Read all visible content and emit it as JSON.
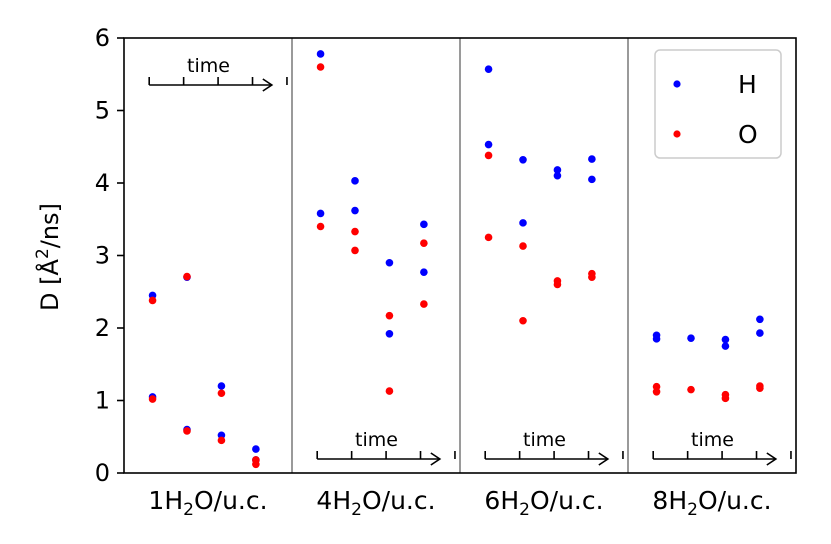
{
  "chart_data": {
    "type": "scatter",
    "ylabel_prefix": "D [Å",
    "ylabel_sup": "2",
    "ylabel_suffix": "/ns]",
    "ylim": [
      0,
      6
    ],
    "yticks": [
      "0",
      "1",
      "2",
      "3",
      "4",
      "5",
      "6"
    ],
    "grid": false,
    "legend_position": "top-right",
    "time_label": "time",
    "panels": [
      {
        "label_pre": "1H",
        "label_sub": "2",
        "label_post": "O/u.c.",
        "time_arrow_position": "top",
        "H": [
          {
            "t": 1,
            "v": 2.45
          },
          {
            "t": 1,
            "v": 1.05
          },
          {
            "t": 2,
            "v": 2.7
          },
          {
            "t": 2,
            "v": 0.6
          },
          {
            "t": 3,
            "v": 1.2
          },
          {
            "t": 3,
            "v": 0.52
          },
          {
            "t": 4,
            "v": 0.33
          },
          {
            "t": 4,
            "v": 0.18
          }
        ],
        "O": [
          {
            "t": 1,
            "v": 2.38
          },
          {
            "t": 1,
            "v": 1.02
          },
          {
            "t": 2,
            "v": 2.71
          },
          {
            "t": 2,
            "v": 0.58
          },
          {
            "t": 3,
            "v": 1.1
          },
          {
            "t": 3,
            "v": 0.45
          },
          {
            "t": 4,
            "v": 0.18
          },
          {
            "t": 4,
            "v": 0.12
          }
        ]
      },
      {
        "label_pre": "4H",
        "label_sub": "2",
        "label_post": "O/u.c.",
        "time_arrow_position": "bottom",
        "H": [
          {
            "t": 1,
            "v": 5.78
          },
          {
            "t": 1,
            "v": 3.58
          },
          {
            "t": 2,
            "v": 4.03
          },
          {
            "t": 2,
            "v": 3.62
          },
          {
            "t": 3,
            "v": 2.9
          },
          {
            "t": 3,
            "v": 1.92
          },
          {
            "t": 4,
            "v": 3.43
          },
          {
            "t": 4,
            "v": 2.77
          }
        ],
        "O": [
          {
            "t": 1,
            "v": 5.6
          },
          {
            "t": 1,
            "v": 3.4
          },
          {
            "t": 2,
            "v": 3.33
          },
          {
            "t": 2,
            "v": 3.07
          },
          {
            "t": 3,
            "v": 2.17
          },
          {
            "t": 3,
            "v": 1.13
          },
          {
            "t": 4,
            "v": 3.17
          },
          {
            "t": 4,
            "v": 2.33
          }
        ]
      },
      {
        "label_pre": "6H",
        "label_sub": "2",
        "label_post": "O/u.c.",
        "time_arrow_position": "bottom",
        "H": [
          {
            "t": 1,
            "v": 5.57
          },
          {
            "t": 1,
            "v": 4.53
          },
          {
            "t": 2,
            "v": 4.32
          },
          {
            "t": 2,
            "v": 3.45
          },
          {
            "t": 3,
            "v": 4.18
          },
          {
            "t": 3,
            "v": 4.1
          },
          {
            "t": 4,
            "v": 4.33
          },
          {
            "t": 4,
            "v": 4.05
          }
        ],
        "O": [
          {
            "t": 1,
            "v": 4.38
          },
          {
            "t": 1,
            "v": 3.25
          },
          {
            "t": 2,
            "v": 3.13
          },
          {
            "t": 2,
            "v": 2.1
          },
          {
            "t": 3,
            "v": 2.65
          },
          {
            "t": 3,
            "v": 2.6
          },
          {
            "t": 4,
            "v": 2.75
          },
          {
            "t": 4,
            "v": 2.7
          }
        ]
      },
      {
        "label_pre": "8H",
        "label_sub": "2",
        "label_post": "O/u.c.",
        "time_arrow_position": "bottom",
        "H": [
          {
            "t": 1,
            "v": 1.9
          },
          {
            "t": 1,
            "v": 1.85
          },
          {
            "t": 2,
            "v": 1.86
          },
          {
            "t": 3,
            "v": 1.84
          },
          {
            "t": 3,
            "v": 1.75
          },
          {
            "t": 4,
            "v": 2.12
          },
          {
            "t": 4,
            "v": 1.93
          }
        ],
        "O": [
          {
            "t": 1,
            "v": 1.19
          },
          {
            "t": 1,
            "v": 1.12
          },
          {
            "t": 2,
            "v": 1.15
          },
          {
            "t": 3,
            "v": 1.08
          },
          {
            "t": 3,
            "v": 1.03
          },
          {
            "t": 4,
            "v": 1.2
          },
          {
            "t": 4,
            "v": 1.17
          }
        ]
      }
    ],
    "series": [
      {
        "name": "H",
        "color": "#0000ff"
      },
      {
        "name": "O",
        "color": "#ff0000"
      }
    ]
  }
}
